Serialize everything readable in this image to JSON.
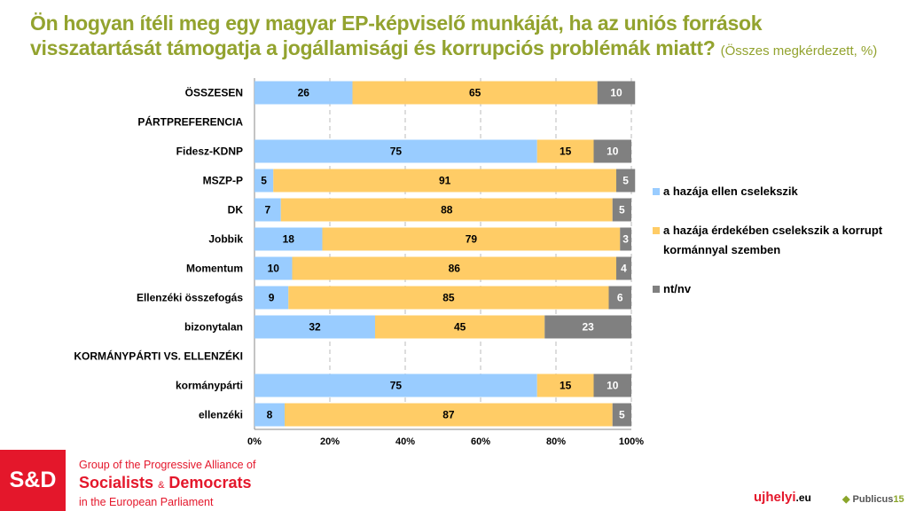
{
  "title": {
    "main": "Ön hogyan ítéli meg egy magyar EP-képviselő munkáját, ha az uniós források visszatartását támogatja a jogállamisági és korrupciós problémák miatt?",
    "sub": "(Összes megkérdezett, %)"
  },
  "chart_data": {
    "type": "bar",
    "orientation": "horizontal",
    "stacked": true,
    "categories": [
      "ÖSSZESEN",
      "PÁRTPREFERENCIA",
      "Fidesz-KDNP",
      "MSZP-P",
      "DK",
      "Jobbik",
      "Momentum",
      "Ellenzéki összefogás",
      "bizonytalan",
      "KORMÁNYPÁRTI VS. ELLENZÉKI",
      "kormánypárti",
      "ellenzéki"
    ],
    "series": [
      {
        "name": "a hazája ellen cselekszik",
        "color": "#99ccff",
        "values": [
          26,
          null,
          75,
          5,
          7,
          18,
          10,
          9,
          32,
          null,
          75,
          8
        ]
      },
      {
        "name": "a hazája érdekében cselekszik a korrupt kormánnyal szemben",
        "color": "#ffcc66",
        "values": [
          65,
          null,
          15,
          91,
          88,
          79,
          86,
          85,
          45,
          null,
          15,
          87
        ]
      },
      {
        "name": "nt/nv",
        "color": "#808080",
        "values": [
          10,
          null,
          10,
          5,
          5,
          3,
          4,
          6,
          23,
          null,
          10,
          5
        ]
      }
    ],
    "xlim": [
      0,
      100
    ],
    "xticks": [
      "0%",
      "20%",
      "40%",
      "60%",
      "80%",
      "100%"
    ],
    "grid": true,
    "legend": "right"
  },
  "footer": {
    "org_logo": "S&D",
    "org_line1": "Group of the Progressive Alliance of",
    "org_line2a": "Socialists",
    "org_amp": "&",
    "org_line2b": "Democrats",
    "org_line3": "in the European Parliament",
    "logo1a": "ujhelyi",
    "logo1b": ".eu",
    "logo2a": "Publicus",
    "logo2b": "15"
  }
}
